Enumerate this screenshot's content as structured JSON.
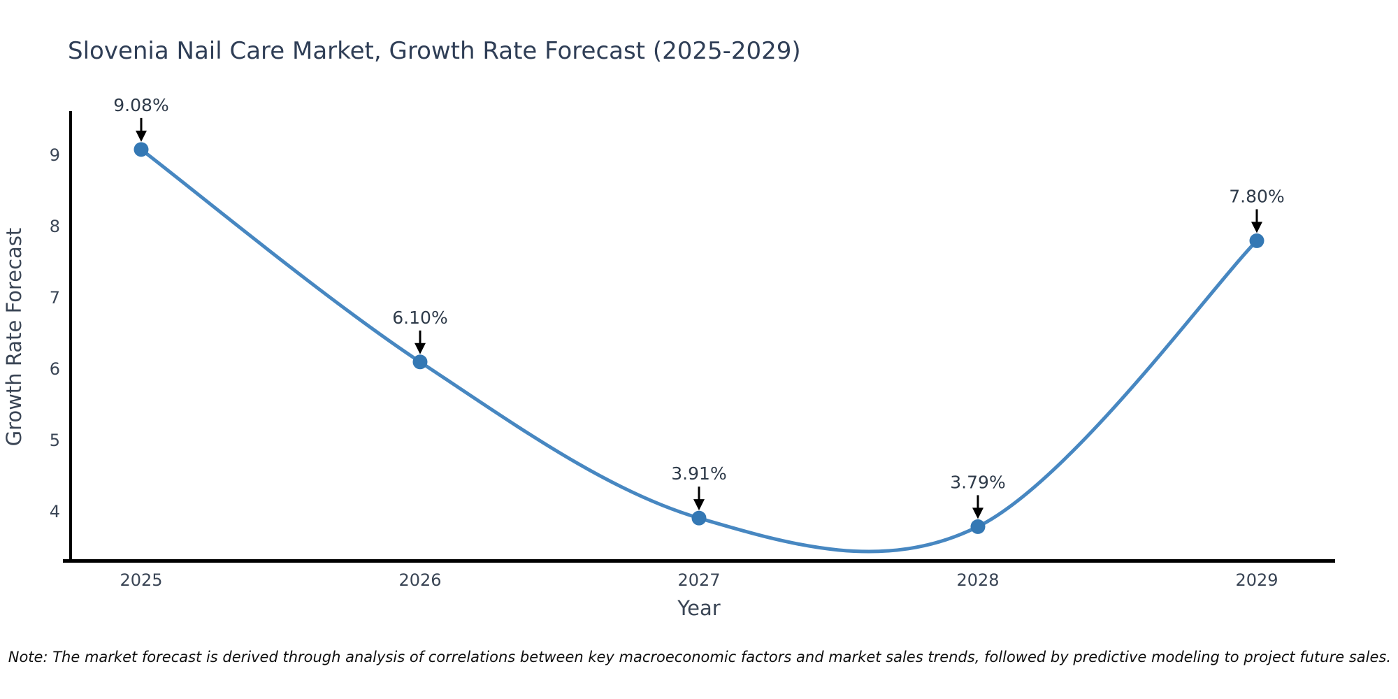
{
  "chart_data": {
    "type": "line",
    "title": "Slovenia Nail Care Market, Growth Rate Forecast (2025-2029)",
    "xlabel": "Year",
    "ylabel": "Growth Rate Forecast",
    "categories": [
      "2025",
      "2026",
      "2027",
      "2028",
      "2029"
    ],
    "values": [
      9.08,
      6.1,
      3.91,
      3.79,
      7.8
    ],
    "point_labels": [
      "9.08%",
      "6.10%",
      "3.91%",
      "3.79%",
      "7.80%"
    ],
    "yticks": [
      4,
      5,
      6,
      7,
      8,
      9
    ],
    "ylim": [
      3.3,
      9.6
    ],
    "grid": false,
    "legend": "none",
    "curve": "smooth-spline",
    "annotation_style": "percentage labels with black downward arrows pointing at circular markers",
    "note": "Note: The market forecast is derived through analysis of correlations between key macroeconomic factors and market sales trends, followed by predictive modeling to project future sales.",
    "colors": {
      "line": "#4787c1",
      "marker": "#3478b4",
      "arrow": "#000000",
      "spine": "#000000",
      "title_text": "#2f3e56",
      "tick_text": "#3a4555",
      "annotation_text": "#2e3a49",
      "note_text": "#0f0f0f",
      "background": "#ffffff"
    }
  }
}
